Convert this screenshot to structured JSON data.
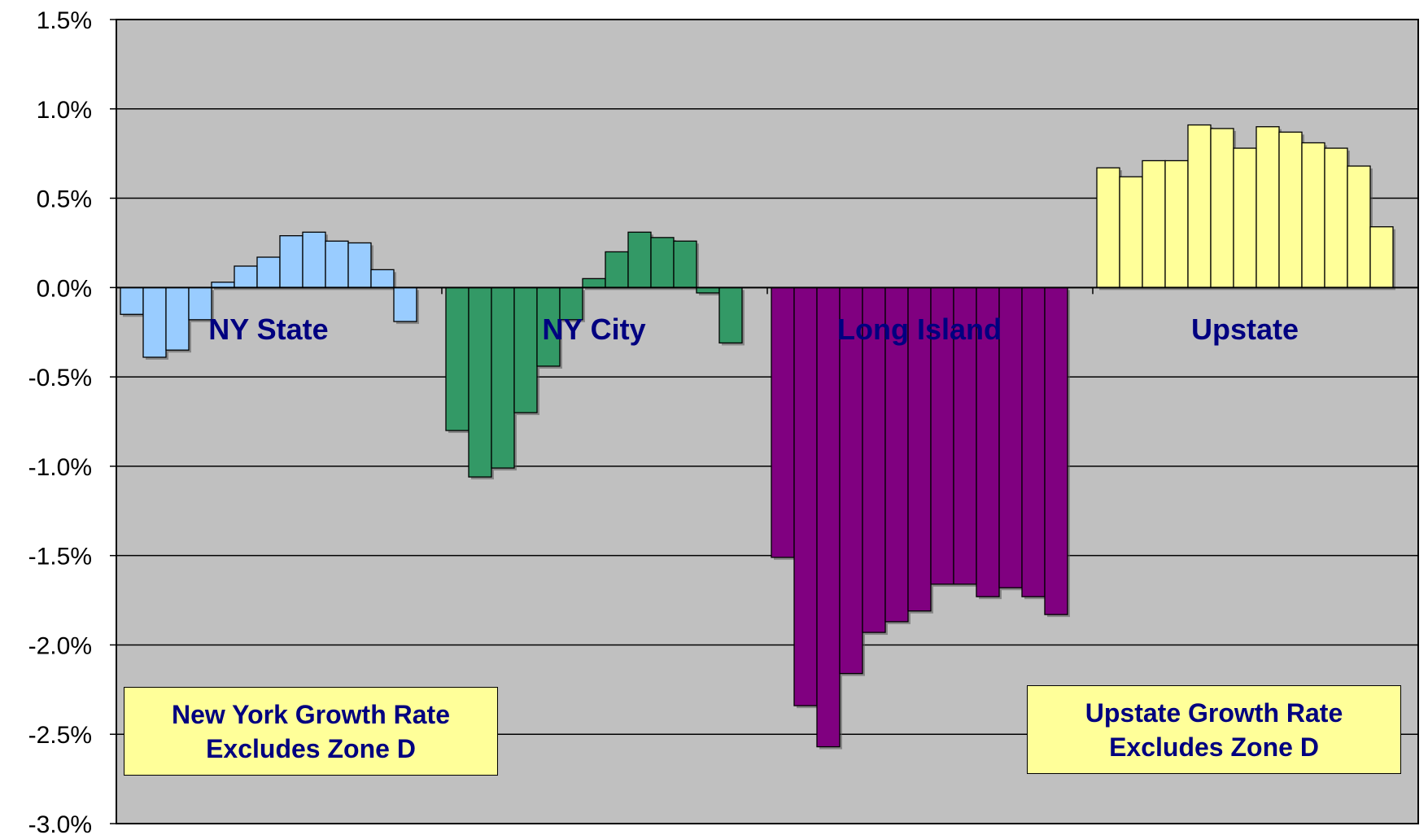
{
  "chart_data": {
    "type": "bar",
    "title": "",
    "xlabel": "",
    "ylabel": "",
    "ylim": [
      -3.0,
      1.5
    ],
    "y_ticks": [
      "1.5%",
      "1.0%",
      "0.5%",
      "0.0%",
      "-0.5%",
      "-1.0%",
      "-1.5%",
      "-2.0%",
      "-2.5%",
      "-3.0%"
    ],
    "y_tick_values": [
      1.5,
      1.0,
      0.5,
      0.0,
      -0.5,
      -1.0,
      -1.5,
      -2.0,
      -2.5,
      -3.0
    ],
    "grid": true,
    "plot_background": "#C0C0C0",
    "groups": [
      {
        "name": "NY State",
        "color": "#99CCFF",
        "values": [
          -0.15,
          -0.39,
          -0.35,
          -0.18,
          0.03,
          0.12,
          0.17,
          0.29,
          0.31,
          0.26,
          0.25,
          0.1,
          -0.19
        ]
      },
      {
        "name": "NY City",
        "color": "#339966",
        "values": [
          -0.8,
          -1.06,
          -1.01,
          -0.7,
          -0.44,
          -0.18,
          0.05,
          0.2,
          0.31,
          0.28,
          0.26,
          -0.03,
          -0.31
        ]
      },
      {
        "name": "Long Island",
        "color": "#800080",
        "values": [
          -1.51,
          -2.34,
          -2.57,
          -2.16,
          -1.93,
          -1.87,
          -1.81,
          -1.66,
          -1.66,
          -1.73,
          -1.68,
          -1.73,
          -1.83
        ]
      },
      {
        "name": "Upstate",
        "color": "#FFFF99",
        "values": [
          0.67,
          0.62,
          0.71,
          0.71,
          0.91,
          0.89,
          0.78,
          0.9,
          0.87,
          0.81,
          0.78,
          0.68,
          0.34
        ]
      }
    ]
  },
  "notes": [
    {
      "line1": "New York Growth Rate",
      "line2": "Excludes Zone D"
    },
    {
      "line1": "Upstate Growth Rate",
      "line2": "Excludes Zone D"
    }
  ]
}
